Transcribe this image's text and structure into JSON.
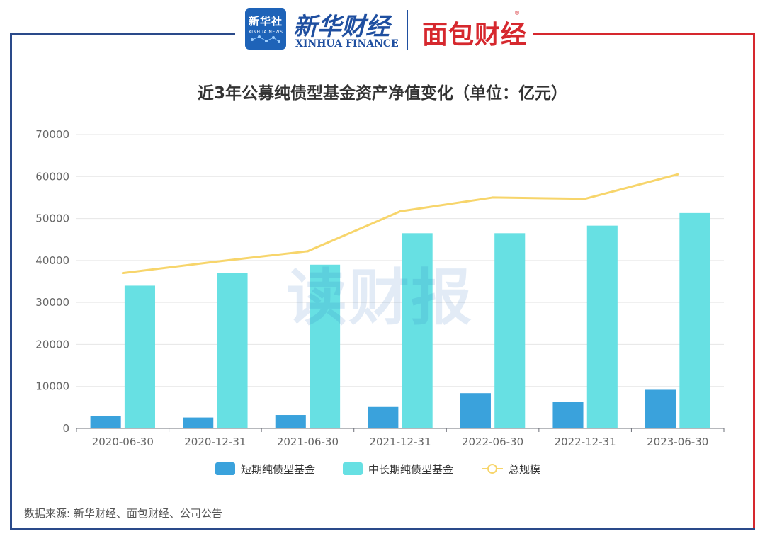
{
  "header": {
    "logo_badge": "新华社",
    "logo_badge_sub": "XINHUA NEWS",
    "brand_cn": "新华财经",
    "brand_en": "XINHUA FINANCE",
    "partner_brand": "面包财经",
    "registered_mark": "®"
  },
  "watermark": "读财报",
  "source_note": "数据来源: 新华财经、面包财经、公司公告",
  "colors": {
    "short_term": "#3aa2dc",
    "long_term": "#67e0e3",
    "total": "#f7d56b",
    "frame_blue": "#2a4a8a",
    "frame_red": "#d6282e"
  },
  "chart_data": {
    "type": "bar",
    "title": "近3年公募纯债型基金资产净值变化（单位：亿元）",
    "categories": [
      "2020-06-30",
      "2020-12-31",
      "2021-06-30",
      "2021-12-31",
      "2022-06-30",
      "2022-12-31",
      "2023-06-30"
    ],
    "series": [
      {
        "name": "短期纯债型基金",
        "type": "bar",
        "values": [
          3000,
          2600,
          3200,
          5100,
          8400,
          6400,
          9200
        ]
      },
      {
        "name": "中长期纯债型基金",
        "type": "bar",
        "values": [
          34000,
          37000,
          39000,
          46500,
          46500,
          48300,
          51300
        ]
      },
      {
        "name": "总规模",
        "type": "line",
        "values": [
          37000,
          39700,
          42200,
          51700,
          55000,
          54700,
          60500
        ]
      }
    ],
    "ylim": [
      0,
      70000
    ],
    "yticks": [
      0,
      10000,
      20000,
      30000,
      40000,
      50000,
      60000,
      70000
    ],
    "grid": true,
    "legend_position": "bottom"
  }
}
